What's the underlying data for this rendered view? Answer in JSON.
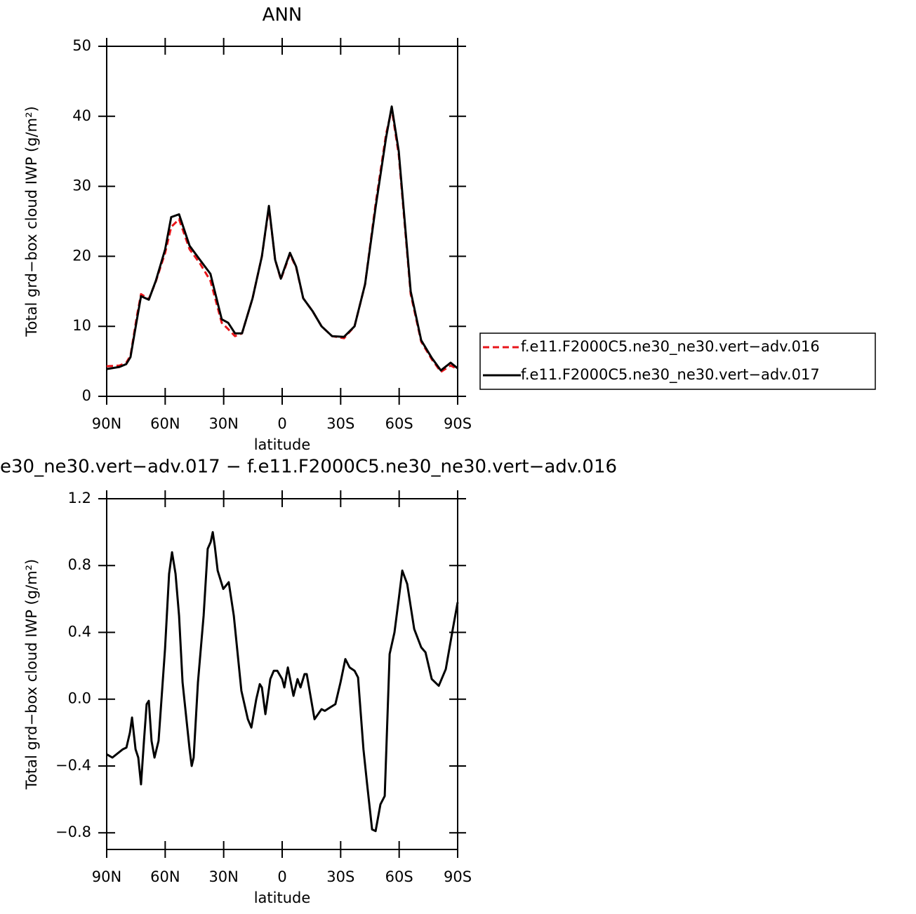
{
  "chart_data": [
    {
      "type": "line",
      "title": "ANN",
      "xlabel": "latitude",
      "ylabel": "Total grd−box cloud IWP (g/m²)",
      "xlim": [
        90,
        -90
      ],
      "xticks": [
        {
          "value": 90,
          "label": "90N"
        },
        {
          "value": 60,
          "label": "60N"
        },
        {
          "value": 30,
          "label": "30N"
        },
        0,
        {
          "value": -30,
          "label": "30S"
        },
        {
          "value": -60,
          "label": "60S"
        },
        {
          "value": -90,
          "label": "90S"
        }
      ],
      "ylim": [
        0,
        50
      ],
      "yticks": [
        0,
        10,
        20,
        30,
        40,
        50
      ],
      "legend": "right",
      "x": [
        90,
        83.5,
        80,
        77.8,
        74.5,
        72.4,
        68.4,
        64.8,
        60,
        56.9,
        52.9,
        47.5,
        42.2,
        36.8,
        31,
        27.7,
        24.2,
        20.6,
        15.2,
        10.4,
        6.8,
        3.6,
        0.7,
        -4,
        -7.2,
        -10.8,
        -15.5,
        -20.2,
        -25.6,
        -31.7,
        -37.1,
        -42.5,
        -47.9,
        -53.3,
        -56.2,
        -59.8,
        -65.9,
        -71.3,
        -76.7,
        -81.4,
        -86.4,
        -90
      ],
      "series": [
        {
          "name": "f.e11.F2000C5.ne30_ne30.vert−adv.016",
          "color": "#e8161b",
          "dash": true,
          "values": [
            4.3,
            4.4,
            4.8,
            5.8,
            11.5,
            14.6,
            13.9,
            16.4,
            20.5,
            24.2,
            25.3,
            21,
            19,
            16.5,
            10.5,
            9.6,
            8.6,
            9,
            14,
            20,
            27,
            19.5,
            16.7,
            20.3,
            18.4,
            14,
            12.2,
            10,
            8.6,
            8.3,
            10,
            16,
            27.5,
            37.5,
            41,
            34.5,
            14.6,
            7.8,
            5.3,
            3.5,
            4.4,
            3.9
          ]
        },
        {
          "name": "f.e11.F2000C5.ne30_ne30.vert−adv.017",
          "color": "#000000",
          "dash": false,
          "values": [
            3.9,
            4.2,
            4.6,
            5.6,
            11,
            14.3,
            13.8,
            16.5,
            21,
            25.6,
            26,
            21.5,
            19.5,
            17.5,
            11,
            10.5,
            9,
            9,
            14,
            20,
            27.2,
            19.5,
            16.8,
            20.5,
            18.5,
            14,
            12.2,
            10,
            8.6,
            8.5,
            10,
            16,
            27,
            37,
            41.4,
            35,
            15,
            8,
            5.5,
            3.7,
            4.8,
            4
          ]
        }
      ]
    },
    {
      "type": "line",
      "title": "e30_ne30.vert−adv.017 − f.e11.F2000C5.ne30_ne30.vert−adv.016",
      "xlabel": "latitude",
      "ylabel": "Total grd−box cloud IWP (g/m²)",
      "xlim": [
        90,
        -90
      ],
      "xticks": [
        {
          "value": 90,
          "label": "90N"
        },
        {
          "value": 60,
          "label": "60N"
        },
        {
          "value": 30,
          "label": "30N"
        },
        0,
        {
          "value": -30,
          "label": "30S"
        },
        {
          "value": -60,
          "label": "60S"
        },
        {
          "value": -90,
          "label": "90S"
        }
      ],
      "ylim": [
        -0.9,
        1.2
      ],
      "yticks": [
        {
          "value": -0.8,
          "label": "−0.8"
        },
        {
          "value": -0.4,
          "label": "−0.4"
        },
        {
          "value": 0,
          "label": "0.0"
        },
        0.4,
        0.8,
        1.2
      ],
      "x": [
        90,
        87.1,
        81.7,
        79.9,
        78.1,
        77,
        75.2,
        73.8,
        72.4,
        70.9,
        69.5,
        68.4,
        67,
        65.5,
        63.4,
        60.1,
        58,
        56.5,
        54.7,
        52.9,
        51.1,
        47.5,
        46.4,
        45.4,
        43.2,
        40.3,
        38.2,
        36.7,
        35.6,
        34.6,
        33.1,
        30.2,
        27.4,
        24.8,
        20.9,
        17.6,
        15.8,
        13.3,
        11.5,
        10.4,
        8.6,
        6.1,
        4.3,
        2.5,
        0,
        -1.1,
        -2.9,
        -5.8,
        -7.9,
        -9.4,
        -11.5,
        -12.6,
        -16.6,
        -20.2,
        -21.9,
        -24.5,
        -27.3,
        -29.9,
        -32.4,
        -34.6,
        -37.1,
        -38.9,
        -41.7,
        -43.5,
        -46.1,
        -47.9,
        -50.4,
        -52.6,
        -55.1,
        -57.6,
        -59.8,
        -61.6,
        -64.1,
        -67.7,
        -71.3,
        -73.5,
        -76.7,
        -80.3,
        -83.9,
        -87.5,
        -90
      ],
      "series": [
        {
          "color": "#000000",
          "dash": false,
          "values": [
            -0.33,
            -0.35,
            -0.3,
            -0.29,
            -0.2,
            -0.11,
            -0.3,
            -0.35,
            -0.51,
            -0.25,
            -0.03,
            -0.01,
            -0.25,
            -0.35,
            -0.25,
            0.3,
            0.75,
            0.88,
            0.75,
            0.5,
            0.1,
            -0.3,
            -0.4,
            -0.35,
            0.1,
            0.5,
            0.9,
            0.94,
            1.0,
            0.92,
            0.77,
            0.66,
            0.7,
            0.5,
            0.05,
            -0.12,
            -0.17,
            0,
            0.09,
            0.07,
            -0.09,
            0.12,
            0.17,
            0.17,
            0.12,
            0.07,
            0.19,
            0.02,
            0.12,
            0.07,
            0.15,
            0.15,
            -0.12,
            -0.06,
            -0.07,
            -0.05,
            -0.03,
            0.1,
            0.24,
            0.19,
            0.17,
            0.13,
            -0.3,
            -0.5,
            -0.78,
            -0.79,
            -0.63,
            -0.58,
            0.27,
            0.4,
            0.6,
            0.77,
            0.69,
            0.42,
            0.31,
            0.28,
            0.12,
            0.08,
            0.18,
            0.42,
            0.58
          ]
        }
      ]
    }
  ]
}
